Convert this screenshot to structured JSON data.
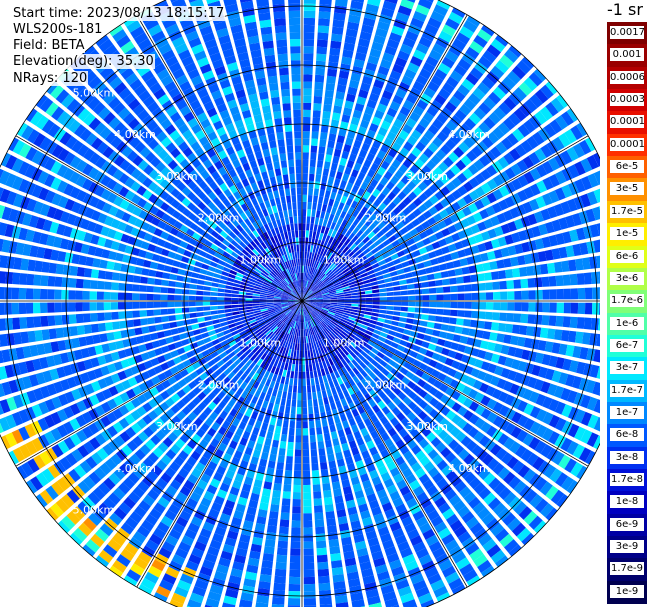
{
  "info": {
    "start_time": "Start time: 2023/08/13 18:15:17",
    "instrument": "WLS200s-181",
    "field": "Field: BETA",
    "elevation": "Elevation(deg): 35.30",
    "nrays": "NRays: 120"
  },
  "colorbar": {
    "unit_label": "-1 sr",
    "entries": [
      {
        "label": "0.0017",
        "color": "#7f0000"
      },
      {
        "label": "0.001",
        "color": "#9a0000"
      },
      {
        "label": "0.0006",
        "color": "#b40000"
      },
      {
        "label": "0.0003",
        "color": "#d00000"
      },
      {
        "label": "0.00017",
        "color": "#e81000"
      },
      {
        "label": "0.0001",
        "color": "#ff3000"
      },
      {
        "label": "6e-5",
        "color": "#ff6000"
      },
      {
        "label": "3e-5",
        "color": "#ff9000"
      },
      {
        "label": "1.7e-5",
        "color": "#ffc000"
      },
      {
        "label": "1e-5",
        "color": "#ffee00"
      },
      {
        "label": "6e-6",
        "color": "#e0ff18"
      },
      {
        "label": "3e-6",
        "color": "#b0ff48"
      },
      {
        "label": "1.7e-6",
        "color": "#80ff78"
      },
      {
        "label": "1e-6",
        "color": "#50ffa8"
      },
      {
        "label": "6e-7",
        "color": "#20ffd8"
      },
      {
        "label": "3e-7",
        "color": "#00e8ff"
      },
      {
        "label": "1.7e-7",
        "color": "#00b8ff"
      },
      {
        "label": "1e-7",
        "color": "#0088ff"
      },
      {
        "label": "6e-8",
        "color": "#0058ff"
      },
      {
        "label": "3e-8",
        "color": "#0030f0"
      },
      {
        "label": "1.7e-8",
        "color": "#0010d8"
      },
      {
        "label": "1e-8",
        "color": "#0000c0"
      },
      {
        "label": "6e-9",
        "color": "#0000a4"
      },
      {
        "label": "3e-9",
        "color": "#000088"
      },
      {
        "label": "1.7e-9",
        "color": "#00006c"
      },
      {
        "label": "1e-9",
        "color": "#000050"
      }
    ]
  },
  "chart_data": {
    "type": "heatmap",
    "projection": "polar-ppi",
    "field": "BETA",
    "elevation_deg": 35.3,
    "n_rays": 120,
    "range_rings_km": [
      1,
      2,
      3,
      4,
      5
    ],
    "ring_labels": [
      "1.00km",
      "2.00km",
      "3.00km",
      "4.00km",
      "5.00km"
    ],
    "azimuth_spokes_deg": [
      0,
      30,
      60,
      90,
      120,
      150,
      180,
      210,
      240,
      270,
      300,
      330
    ],
    "max_range_km": 5.6,
    "scale": "log",
    "value_range": [
      1e-09,
      0.0017
    ],
    "colors": {
      "background_field": "#0a78f0",
      "inner_field": "#0a3ce0",
      "aerosol_band": "#26d0ee",
      "edge_band_sw": "#ffd800",
      "grid": "#000000",
      "ring_label": "#ffffff"
    },
    "features": [
      {
        "desc": "strong low-range signal",
        "range_km": [
          0,
          1.3
        ],
        "value": 3e-08
      },
      {
        "desc": "aerosol ring",
        "range_km": [
          3.0,
          3.6
        ],
        "value": 2e-07
      },
      {
        "desc": "south-west outer edge band",
        "range_km": [
          4.9,
          5.6
        ],
        "azimuth_deg": [
          200,
          245
        ],
        "value": 1.5e-05
      }
    ]
  }
}
